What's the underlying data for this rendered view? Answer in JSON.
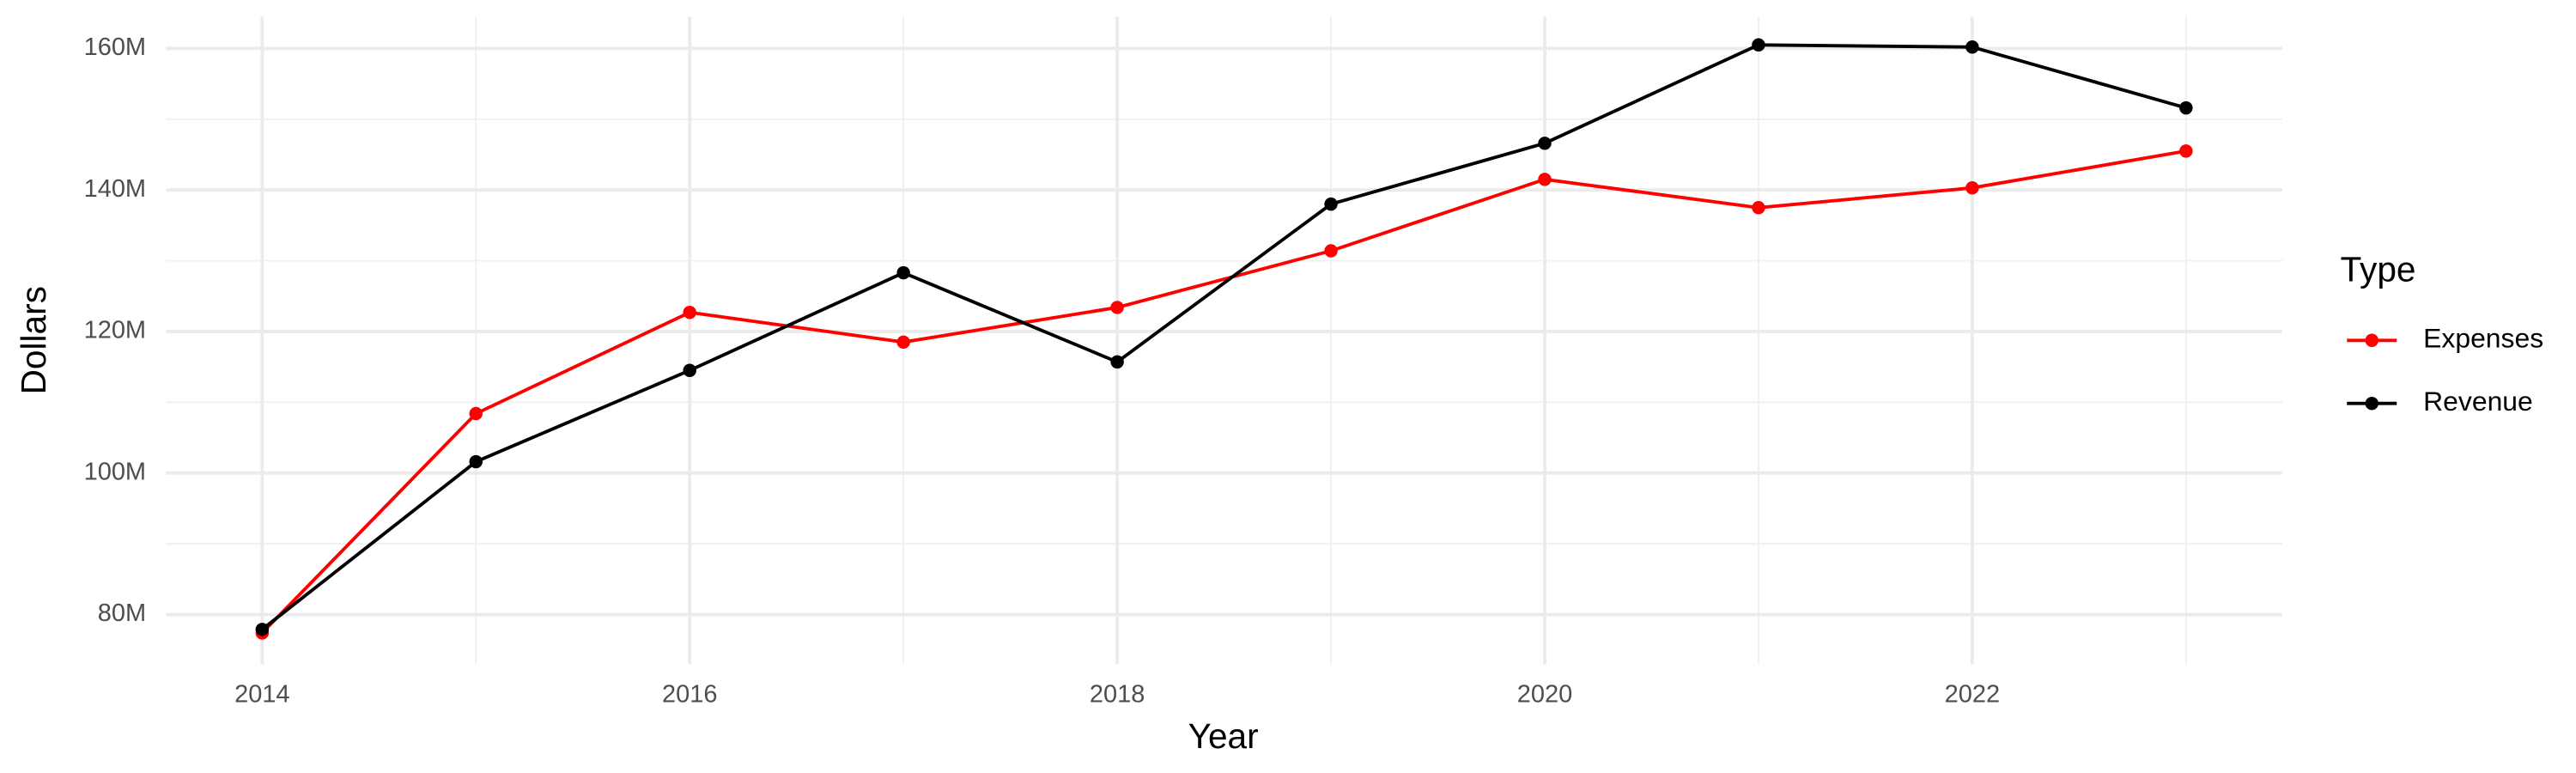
{
  "chart_data": {
    "type": "line",
    "x_label": "Year",
    "y_label": "Dollars",
    "legend_title": "Type",
    "legend_position": "right",
    "grid": true,
    "x": [
      2014,
      2015,
      2016,
      2017,
      2018,
      2019,
      2020,
      2021,
      2022,
      2023
    ],
    "series": [
      {
        "name": "Expenses",
        "color": "#ff0000",
        "values": [
          77400000,
          108400000,
          122700000,
          118500000,
          123400000,
          131400000,
          141500000,
          137500000,
          140300000,
          145500000
        ]
      },
      {
        "name": "Revenue",
        "color": "#000000",
        "values": [
          77900000,
          101600000,
          114500000,
          128300000,
          115700000,
          138000000,
          146600000,
          160500000,
          160200000,
          151600000
        ]
      }
    ],
    "xlim": [
      2013.55,
      2023.45
    ],
    "xticks": [
      2014,
      2016,
      2018,
      2020,
      2022
    ],
    "ylim": [
      73000000,
      164500000
    ],
    "yticks": [
      {
        "value": 80000000,
        "label": "80M"
      },
      {
        "value": 100000000,
        "label": "100M"
      },
      {
        "value": 120000000,
        "label": "120M"
      },
      {
        "value": 140000000,
        "label": "140M"
      },
      {
        "value": 160000000,
        "label": "160M"
      }
    ]
  }
}
